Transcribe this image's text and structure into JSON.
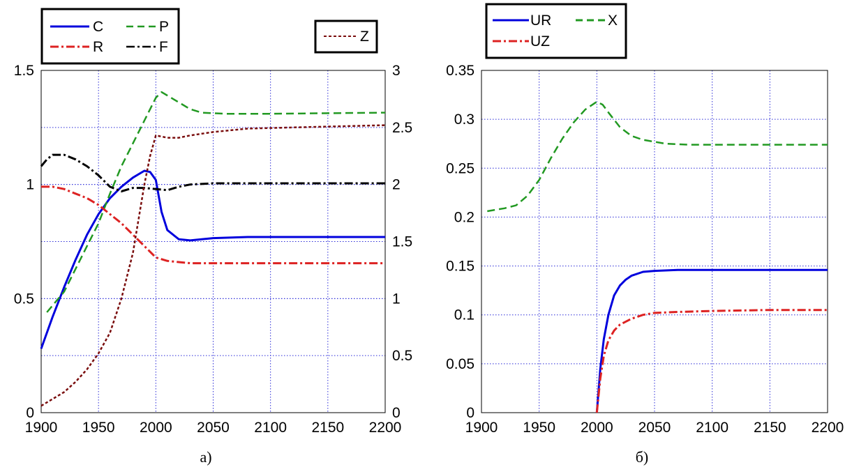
{
  "chart_data": [
    {
      "type": "line",
      "caption": "а)",
      "x_ticks": [
        "1900",
        "1950",
        "2000",
        "2050",
        "2100",
        "2150",
        "2200"
      ],
      "y_left_ticks": [
        "0",
        "0.5",
        "1",
        "1.5"
      ],
      "y_right_ticks": [
        "0",
        "0.5",
        "1",
        "1.5",
        "2",
        "2.5",
        "3"
      ],
      "xlim": [
        1900,
        2200
      ],
      "ylim_left": [
        0,
        1.5
      ],
      "ylim_right": [
        0,
        3
      ],
      "grid": true,
      "legend_main": {
        "placement": "top-left-outside",
        "entries": [
          "C",
          "P",
          "R",
          "F"
        ]
      },
      "legend_right": {
        "placement": "top-right-outside",
        "entries": [
          "Z"
        ]
      },
      "series": [
        {
          "name": "C",
          "axis": "left",
          "color": "#0000dd",
          "style": "solid",
          "x": [
            1900,
            1910,
            1920,
            1930,
            1940,
            1950,
            1960,
            1970,
            1980,
            1990,
            1995,
            2000,
            2005,
            2010,
            2020,
            2030,
            2050,
            2080,
            2120,
            2200
          ],
          "y": [
            0.28,
            0.42,
            0.55,
            0.67,
            0.78,
            0.87,
            0.94,
            0.99,
            1.03,
            1.06,
            1.055,
            1.02,
            0.88,
            0.8,
            0.76,
            0.755,
            0.765,
            0.77,
            0.77,
            0.77
          ]
        },
        {
          "name": "P",
          "axis": "left",
          "color": "#229922",
          "style": "dashed",
          "x": [
            1905,
            1920,
            1930,
            1940,
            1950,
            1960,
            1970,
            1980,
            1990,
            2000,
            2005,
            2010,
            2020,
            2030,
            2040,
            2060,
            2100,
            2200
          ],
          "y": [
            0.44,
            0.53,
            0.63,
            0.73,
            0.83,
            0.96,
            1.08,
            1.18,
            1.28,
            1.38,
            1.405,
            1.39,
            1.36,
            1.33,
            1.315,
            1.31,
            1.31,
            1.315
          ]
        },
        {
          "name": "R",
          "axis": "left",
          "color": "#dd2222",
          "style": "dashdot",
          "x": [
            1900,
            1910,
            1920,
            1930,
            1940,
            1950,
            1960,
            1970,
            1980,
            1990,
            2000,
            2010,
            2020,
            2030,
            2050,
            2100,
            2200
          ],
          "y": [
            0.99,
            0.99,
            0.98,
            0.96,
            0.94,
            0.91,
            0.87,
            0.83,
            0.78,
            0.73,
            0.68,
            0.665,
            0.66,
            0.655,
            0.655,
            0.655,
            0.655
          ]
        },
        {
          "name": "F",
          "axis": "left",
          "color": "#000000",
          "style": "dashdot",
          "x": [
            1900,
            1905,
            1910,
            1920,
            1930,
            1940,
            1950,
            1960,
            1970,
            1980,
            1990,
            2000,
            2010,
            2020,
            2030,
            2050,
            2100,
            2200
          ],
          "y": [
            1.08,
            1.11,
            1.13,
            1.13,
            1.11,
            1.08,
            1.04,
            0.99,
            0.97,
            0.985,
            0.985,
            0.98,
            0.975,
            0.99,
            1.0,
            1.005,
            1.005,
            1.005
          ]
        },
        {
          "name": "Z",
          "axis": "right",
          "color": "#7a0d0d",
          "style": "dotted",
          "x": [
            1900,
            1910,
            1920,
            1930,
            1940,
            1950,
            1960,
            1970,
            1980,
            1985,
            1990,
            1995,
            2000,
            2005,
            2010,
            2020,
            2030,
            2050,
            2080,
            2120,
            2200
          ],
          "y": [
            0.06,
            0.12,
            0.18,
            0.27,
            0.38,
            0.52,
            0.7,
            1.0,
            1.4,
            1.7,
            2.0,
            2.25,
            2.43,
            2.42,
            2.41,
            2.41,
            2.43,
            2.46,
            2.49,
            2.5,
            2.52
          ]
        }
      ]
    },
    {
      "type": "line",
      "caption": "б)",
      "x_ticks": [
        "1900",
        "1950",
        "2000",
        "2050",
        "2100",
        "2150",
        "2200"
      ],
      "y_ticks": [
        "0",
        "0.05",
        "0.1",
        "0.15",
        "0.2",
        "0.25",
        "0.3",
        "0.35"
      ],
      "xlim": [
        1900,
        2200
      ],
      "ylim": [
        0,
        0.35
      ],
      "grid": true,
      "legend": {
        "placement": "top-left-outside",
        "entries": [
          "UR",
          "X",
          "UZ"
        ]
      },
      "series": [
        {
          "name": "UR",
          "color": "#0000dd",
          "style": "solid",
          "x": [
            2000,
            2003,
            2006,
            2010,
            2015,
            2020,
            2025,
            2030,
            2040,
            2050,
            2070,
            2100,
            2200
          ],
          "y": [
            0.0,
            0.045,
            0.075,
            0.1,
            0.12,
            0.13,
            0.136,
            0.14,
            0.144,
            0.145,
            0.146,
            0.146,
            0.146
          ]
        },
        {
          "name": "X",
          "color": "#229922",
          "style": "dashed",
          "x": [
            1905,
            1920,
            1930,
            1940,
            1950,
            1960,
            1970,
            1980,
            1990,
            2000,
            2005,
            2010,
            2020,
            2030,
            2040,
            2050,
            2060,
            2080,
            2100,
            2200
          ],
          "y": [
            0.206,
            0.209,
            0.212,
            0.222,
            0.238,
            0.26,
            0.28,
            0.297,
            0.31,
            0.318,
            0.315,
            0.307,
            0.292,
            0.283,
            0.279,
            0.277,
            0.275,
            0.274,
            0.274,
            0.274
          ]
        },
        {
          "name": "UZ",
          "color": "#dd2222",
          "style": "dashdot",
          "x": [
            2000,
            2003,
            2006,
            2010,
            2015,
            2020,
            2030,
            2040,
            2050,
            2070,
            2100,
            2150,
            2200
          ],
          "y": [
            0.0,
            0.035,
            0.058,
            0.074,
            0.084,
            0.09,
            0.096,
            0.1,
            0.102,
            0.103,
            0.104,
            0.105,
            0.105
          ]
        }
      ]
    }
  ]
}
